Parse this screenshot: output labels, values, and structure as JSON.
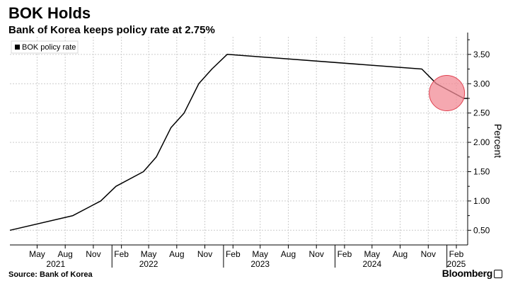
{
  "header": {
    "title": "BOK Holds",
    "subtitle": "Bank of Korea keeps policy rate at 2.75%"
  },
  "footer": {
    "source": "Source: Bank of Korea",
    "brand": "Bloomberg"
  },
  "colors": {
    "line": "#000000",
    "grid": "#cccccc",
    "highlight_fill": "#f28b96",
    "highlight_stroke": "#e0404f"
  },
  "chart_data": {
    "type": "line",
    "title": "BOK Holds",
    "subtitle": "Bank of Korea keeps policy rate at 2.75%",
    "ylabel": "Percent",
    "xlabel": "",
    "ylim": [
      0.25,
      3.8
    ],
    "xlim": [
      "2021-02-01",
      "2025-03-10"
    ],
    "grid": true,
    "legend": {
      "position": "top-left",
      "entries": [
        "BOK policy rate"
      ]
    },
    "y_ticks": [
      0.5,
      1.0,
      1.5,
      2.0,
      2.5,
      3.0,
      3.5
    ],
    "y_tick_labels": [
      "0.50",
      "1.00",
      "1.50",
      "2.00",
      "2.50",
      "3.00",
      "3.50"
    ],
    "x_ticks": [
      {
        "date": "2021-05-01",
        "label": "May"
      },
      {
        "date": "2021-08-01",
        "label": "Aug"
      },
      {
        "date": "2021-11-01",
        "label": "Nov"
      },
      {
        "date": "2022-02-01",
        "label": "Feb"
      },
      {
        "date": "2022-05-01",
        "label": "May"
      },
      {
        "date": "2022-08-01",
        "label": "Aug"
      },
      {
        "date": "2022-11-01",
        "label": "Nov"
      },
      {
        "date": "2023-02-01",
        "label": "Feb"
      },
      {
        "date": "2023-05-01",
        "label": "May"
      },
      {
        "date": "2023-08-01",
        "label": "Aug"
      },
      {
        "date": "2023-11-01",
        "label": "Nov"
      },
      {
        "date": "2024-02-01",
        "label": "Feb"
      },
      {
        "date": "2024-05-01",
        "label": "May"
      },
      {
        "date": "2024-08-01",
        "label": "Aug"
      },
      {
        "date": "2024-11-01",
        "label": "Nov"
      },
      {
        "date": "2025-02-01",
        "label": "Feb"
      }
    ],
    "year_labels": [
      {
        "date": "2021-07-01",
        "label": "2021"
      },
      {
        "date": "2022-05-01",
        "label": "2022"
      },
      {
        "date": "2023-05-01",
        "label": "2023"
      },
      {
        "date": "2024-05-01",
        "label": "2024"
      },
      {
        "date": "2025-02-01",
        "label": "2025"
      }
    ],
    "series": [
      {
        "name": "BOK policy rate",
        "x": [
          "2021-02-01",
          "2021-08-26",
          "2021-11-25",
          "2022-01-14",
          "2022-04-14",
          "2022-05-26",
          "2022-07-13",
          "2022-08-25",
          "2022-10-12",
          "2022-11-24",
          "2023-01-13",
          "2024-10-11",
          "2024-11-28",
          "2025-02-25",
          "2025-03-10"
        ],
        "y": [
          0.5,
          0.75,
          1.0,
          1.25,
          1.5,
          1.75,
          2.25,
          2.5,
          3.0,
          3.25,
          3.5,
          3.25,
          3.0,
          2.75,
          2.75
        ]
      }
    ],
    "annotations": [
      {
        "type": "highlight-circle",
        "date": "2025-01-01",
        "value": 2.84
      }
    ]
  }
}
